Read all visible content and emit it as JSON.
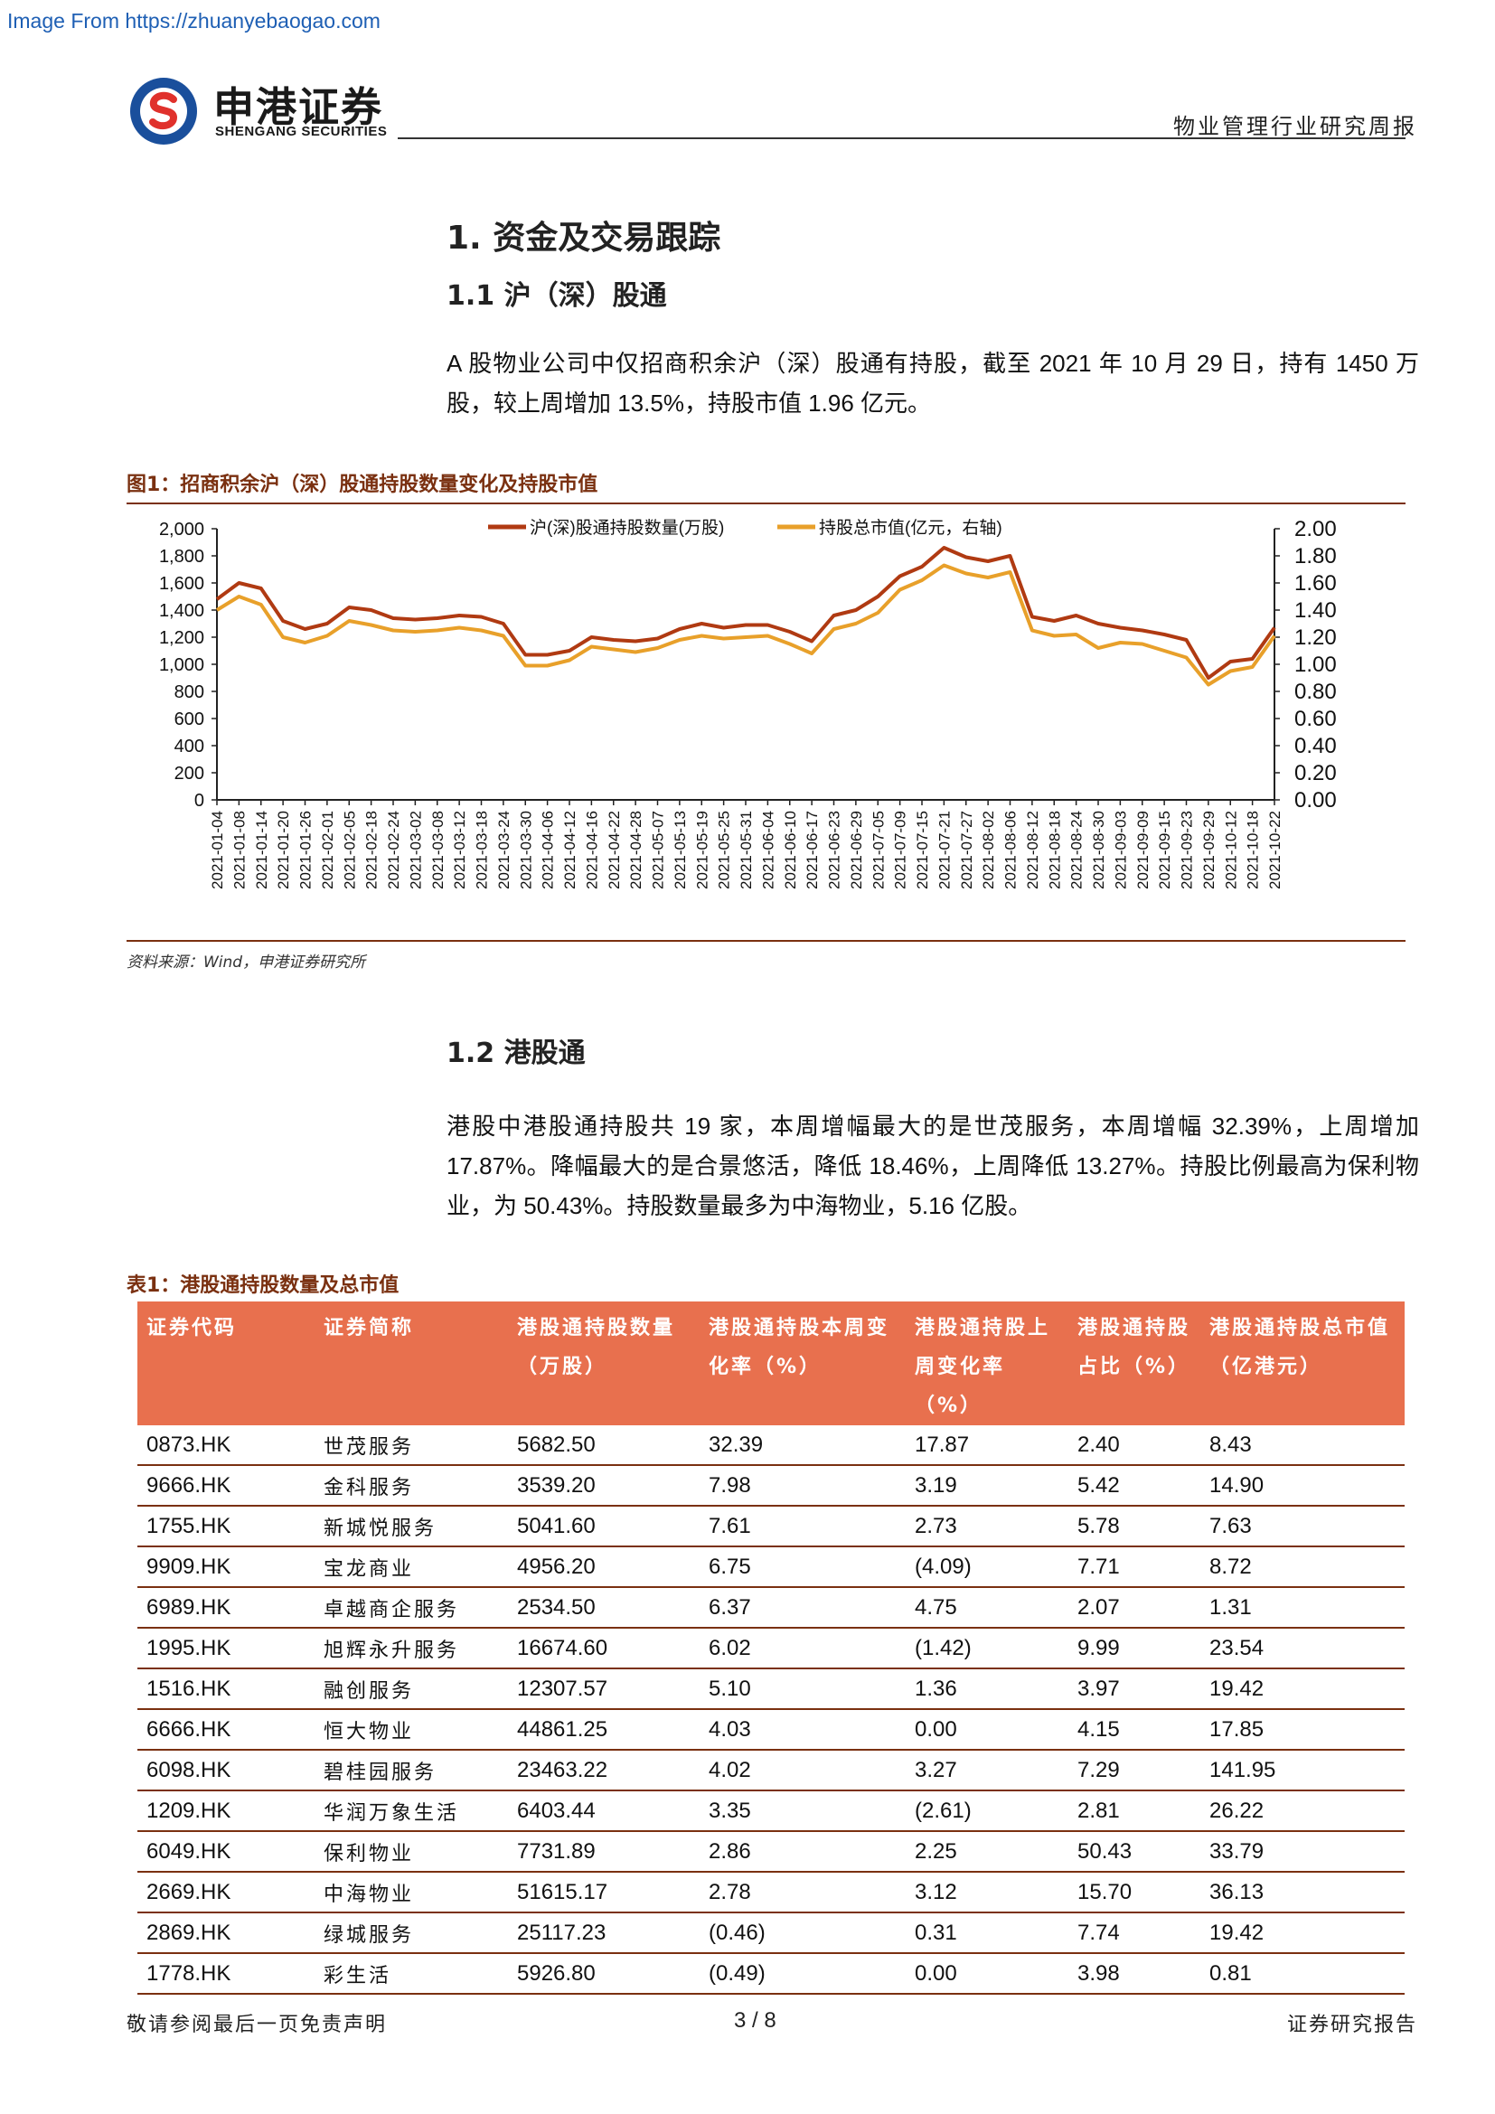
{
  "watermark": "Image From https://zhuanyebaogao.com",
  "brand": {
    "name_cn": "申港证券",
    "name_en": "SHENGANG SECURITIES",
    "primary_color": "#1a4f9c",
    "accent_color": "#e0312c"
  },
  "header": {
    "report_type": "物业管理行业研究周报"
  },
  "section1": {
    "title": "1. 资金及交易跟踪",
    "sub1_title": "1.1 沪（深）股通",
    "sub1_text": "A 股物业公司中仅招商积余沪（深）股通有持股，截至 2021 年 10 月 29 日，持有 1450 万股，较上周增加 13.5%，持股市值 1.96 亿元。"
  },
  "figure1": {
    "title": "图1：招商积余沪（深）股通持股数量变化及持股市值",
    "source": "资料来源：Wind，申港证券研究所"
  },
  "chart_data": {
    "type": "line",
    "title": "",
    "x": [
      "2021-01-04",
      "2021-01-08",
      "2021-01-14",
      "2021-01-20",
      "2021-01-26",
      "2021-02-01",
      "2021-02-05",
      "2021-02-18",
      "2021-02-24",
      "2021-03-02",
      "2021-03-08",
      "2021-03-12",
      "2021-03-18",
      "2021-03-24",
      "2021-03-30",
      "2021-04-06",
      "2021-04-12",
      "2021-04-16",
      "2021-04-22",
      "2021-04-28",
      "2021-05-07",
      "2021-05-13",
      "2021-05-19",
      "2021-05-25",
      "2021-05-31",
      "2021-06-04",
      "2021-06-10",
      "2021-06-17",
      "2021-06-23",
      "2021-06-29",
      "2021-07-05",
      "2021-07-09",
      "2021-07-15",
      "2021-07-21",
      "2021-07-27",
      "2021-08-02",
      "2021-08-06",
      "2021-08-12",
      "2021-08-18",
      "2021-08-24",
      "2021-08-30",
      "2021-09-03",
      "2021-09-09",
      "2021-09-15",
      "2021-09-23",
      "2021-09-29",
      "2021-10-12",
      "2021-10-18",
      "2021-10-22"
    ],
    "series": [
      {
        "name": "沪(深)股通持股数量(万股)",
        "axis": "left",
        "color": "#b03a12",
        "values": [
          1480,
          1600,
          1560,
          1320,
          1260,
          1300,
          1420,
          1400,
          1340,
          1330,
          1340,
          1360,
          1350,
          1300,
          1070,
          1070,
          1100,
          1200,
          1180,
          1170,
          1190,
          1260,
          1300,
          1270,
          1290,
          1290,
          1240,
          1170,
          1360,
          1400,
          1500,
          1650,
          1720,
          1860,
          1790,
          1760,
          1800,
          1350,
          1320,
          1360,
          1300,
          1270,
          1250,
          1220,
          1180,
          900,
          1020,
          1040,
          1270
        ]
      },
      {
        "name": "持股总市值(亿元，右轴)",
        "axis": "right",
        "color": "#e8a02a",
        "values": [
          1.4,
          1.5,
          1.44,
          1.2,
          1.16,
          1.21,
          1.32,
          1.29,
          1.25,
          1.24,
          1.25,
          1.27,
          1.25,
          1.21,
          0.99,
          0.99,
          1.03,
          1.13,
          1.11,
          1.09,
          1.12,
          1.18,
          1.21,
          1.19,
          1.2,
          1.21,
          1.15,
          1.08,
          1.26,
          1.3,
          1.38,
          1.55,
          1.62,
          1.73,
          1.67,
          1.64,
          1.68,
          1.25,
          1.21,
          1.22,
          1.12,
          1.16,
          1.15,
          1.1,
          1.05,
          0.85,
          0.95,
          0.98,
          1.21
        ]
      }
    ],
    "y_left": {
      "ylim": [
        0,
        2000
      ],
      "ticks": [
        "0",
        "200",
        "400",
        "600",
        "800",
        "1,000",
        "1,200",
        "1,400",
        "1,600",
        "1,800",
        "2,000"
      ]
    },
    "y_right": {
      "ylim": [
        0,
        2
      ],
      "ticks": [
        "0.00",
        "0.20",
        "0.40",
        "0.60",
        "0.80",
        "1.00",
        "1.20",
        "1.40",
        "1.60",
        "1.80",
        "2.00"
      ]
    },
    "legend_position": "top-center",
    "grid": false
  },
  "section12": {
    "title": "1.2 港股通",
    "text": "港股中港股通持股共 19 家，本周增幅最大的是世茂服务，本周增幅 32.39%，上周增加 17.87%。降幅最大的是合景悠活，降低 18.46%，上周降低 13.27%。持股比例最高为保利物业，为 50.43%。持股数量最多为中海物业，5.16 亿股。"
  },
  "table1": {
    "title": "表1：港股通持股数量及总市值",
    "header_color": "#e8704e",
    "columns": [
      "证券代码",
      "证券简称",
      "港股通持股数量（万股）",
      "港股通持股本周变化率（%）",
      "港股通持股上周变化率（%）",
      "港股通持股占比（%）",
      "港股通持股总市值（亿港元）"
    ],
    "rows": [
      [
        "0873.HK",
        "世茂服务",
        "5682.50",
        "32.39",
        "17.87",
        "2.40",
        "8.43"
      ],
      [
        "9666.HK",
        "金科服务",
        "3539.20",
        "7.98",
        "3.19",
        "5.42",
        "14.90"
      ],
      [
        "1755.HK",
        "新城悦服务",
        "5041.60",
        "7.61",
        "2.73",
        "5.78",
        "7.63"
      ],
      [
        "9909.HK",
        "宝龙商业",
        "4956.20",
        "6.75",
        "(4.09)",
        "7.71",
        "8.72"
      ],
      [
        "6989.HK",
        "卓越商企服务",
        "2534.50",
        "6.37",
        "4.75",
        "2.07",
        "1.31"
      ],
      [
        "1995.HK",
        "旭辉永升服务",
        "16674.60",
        "6.02",
        "(1.42)",
        "9.99",
        "23.54"
      ],
      [
        "1516.HK",
        "融创服务",
        "12307.57",
        "5.10",
        "1.36",
        "3.97",
        "19.42"
      ],
      [
        "6666.HK",
        "恒大物业",
        "44861.25",
        "4.03",
        "0.00",
        "4.15",
        "17.85"
      ],
      [
        "6098.HK",
        "碧桂园服务",
        "23463.22",
        "4.02",
        "3.27",
        "7.29",
        "141.95"
      ],
      [
        "1209.HK",
        "华润万象生活",
        "6403.44",
        "3.35",
        "(2.61)",
        "2.81",
        "26.22"
      ],
      [
        "6049.HK",
        "保利物业",
        "7731.89",
        "2.86",
        "2.25",
        "50.43",
        "33.79"
      ],
      [
        "2669.HK",
        "中海物业",
        "51615.17",
        "2.78",
        "3.12",
        "15.70",
        "36.13"
      ],
      [
        "2869.HK",
        "绿城服务",
        "25117.23",
        "(0.46)",
        "0.31",
        "7.74",
        "19.42"
      ],
      [
        "1778.HK",
        "彩生活",
        "5926.80",
        "(0.49)",
        "0.00",
        "3.98",
        "0.81"
      ]
    ]
  },
  "footer": {
    "disclaimer": "敬请参阅最后一页免责声明",
    "page": "3 / 8",
    "report_label": "证券研究报告"
  }
}
